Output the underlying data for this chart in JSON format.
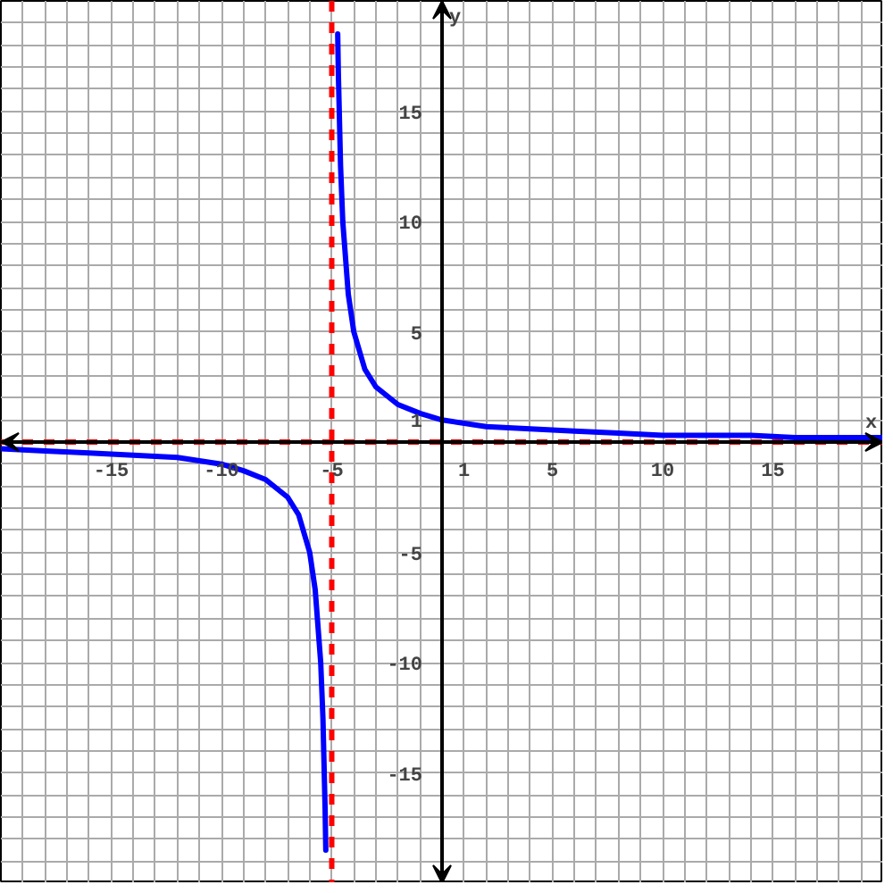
{
  "chart_data": {
    "type": "line",
    "xlabel": "x",
    "ylabel": "y",
    "xlim": [
      -20,
      20
    ],
    "ylim": [
      -20,
      20
    ],
    "xticks": [
      {
        "value": -19,
        "label": null
      },
      {
        "value": -18,
        "label": null
      },
      {
        "value": -17,
        "label": null
      },
      {
        "value": -16,
        "label": null
      },
      -15,
      {
        "value": -14,
        "label": null
      },
      {
        "value": -13,
        "label": null
      },
      {
        "value": -12,
        "label": null
      },
      {
        "value": -11,
        "label": null
      },
      -10,
      {
        "value": -9,
        "label": null
      },
      {
        "value": -8,
        "label": null
      },
      {
        "value": -7,
        "label": null
      },
      {
        "value": -6,
        "label": null
      },
      -5,
      {
        "value": -4,
        "label": null
      },
      {
        "value": -3,
        "label": null
      },
      {
        "value": -2,
        "label": null
      },
      {
        "value": -1,
        "label": null
      },
      1,
      {
        "value": 2,
        "label": null
      },
      {
        "value": 3,
        "label": null
      },
      {
        "value": 4,
        "label": null
      },
      5,
      {
        "value": 6,
        "label": null
      },
      {
        "value": 7,
        "label": null
      },
      {
        "value": 8,
        "label": null
      },
      {
        "value": 9,
        "label": null
      },
      10,
      {
        "value": 11,
        "label": null
      },
      {
        "value": 12,
        "label": null
      },
      {
        "value": 13,
        "label": null
      },
      {
        "value": 14,
        "label": null
      },
      15,
      {
        "value": 16,
        "label": null
      },
      {
        "value": 17,
        "label": null
      },
      {
        "value": 18,
        "label": null
      },
      {
        "value": 19,
        "label": null
      }
    ],
    "yticks": [
      {
        "value": -19,
        "label": null
      },
      {
        "value": -18,
        "label": null
      },
      {
        "value": -17,
        "label": null
      },
      {
        "value": -16,
        "label": null
      },
      -15,
      {
        "value": -14,
        "label": null
      },
      {
        "value": -13,
        "label": null
      },
      {
        "value": -12,
        "label": null
      },
      {
        "value": -11,
        "label": null
      },
      -10,
      {
        "value": -9,
        "label": null
      },
      {
        "value": -8,
        "label": null
      },
      {
        "value": -7,
        "label": null
      },
      {
        "value": -6,
        "label": null
      },
      -5,
      {
        "value": -4,
        "label": null
      },
      {
        "value": -3,
        "label": null
      },
      {
        "value": -2,
        "label": null
      },
      {
        "value": -1,
        "label": null
      },
      1,
      {
        "value": 2,
        "label": null
      },
      {
        "value": 3,
        "label": null
      },
      {
        "value": 4,
        "label": null
      },
      5,
      {
        "value": 6,
        "label": null
      },
      {
        "value": 7,
        "label": null
      },
      {
        "value": 8,
        "label": null
      },
      {
        "value": 9,
        "label": null
      },
      10,
      {
        "value": 11,
        "label": null
      },
      {
        "value": 12,
        "label": null
      },
      {
        "value": 13,
        "label": null
      },
      {
        "value": 14,
        "label": null
      },
      15,
      {
        "value": 16,
        "label": null
      },
      {
        "value": 17,
        "label": null
      },
      {
        "value": 18,
        "label": null
      },
      {
        "value": 19,
        "label": null
      }
    ],
    "grid": true,
    "line_style": "solid",
    "series": [
      {
        "color": "#0000ff",
        "x": [
          -20,
          -18,
          -16,
          -14,
          -12,
          -10,
          -9,
          -8,
          -7,
          -6.5,
          -6,
          -5.75,
          -5.5,
          -5.4,
          -5.3,
          -5.27,
          null,
          -4.73,
          -4.7,
          -4.6,
          -4.5,
          -4.25,
          -4,
          -3.5,
          -3,
          -2,
          -1,
          0,
          2,
          4,
          6,
          8,
          10,
          12,
          14,
          16,
          18,
          20
        ],
        "values": [
          -0.3,
          -0.4,
          -0.5,
          -0.6,
          -0.7,
          -1,
          -1.3,
          -1.7,
          -2.5,
          -3.3,
          -5,
          -6.7,
          -10,
          -12.5,
          -16.7,
          -18.5,
          null,
          18.5,
          16.7,
          12.5,
          10,
          6.7,
          5,
          3.3,
          2.5,
          1.7,
          1.3,
          1,
          0.7,
          0.6,
          0.5,
          0.4,
          0.3,
          0.3,
          0.3,
          0.2,
          0.2,
          0.2
        ]
      }
    ],
    "ref_lines": [
      {
        "axis": "x",
        "value": -5,
        "color": "#ff0000",
        "line_style": "dashed"
      },
      {
        "axis": "y",
        "value": 0,
        "color": "#ff0000",
        "line_style": "dashed"
      }
    ]
  }
}
